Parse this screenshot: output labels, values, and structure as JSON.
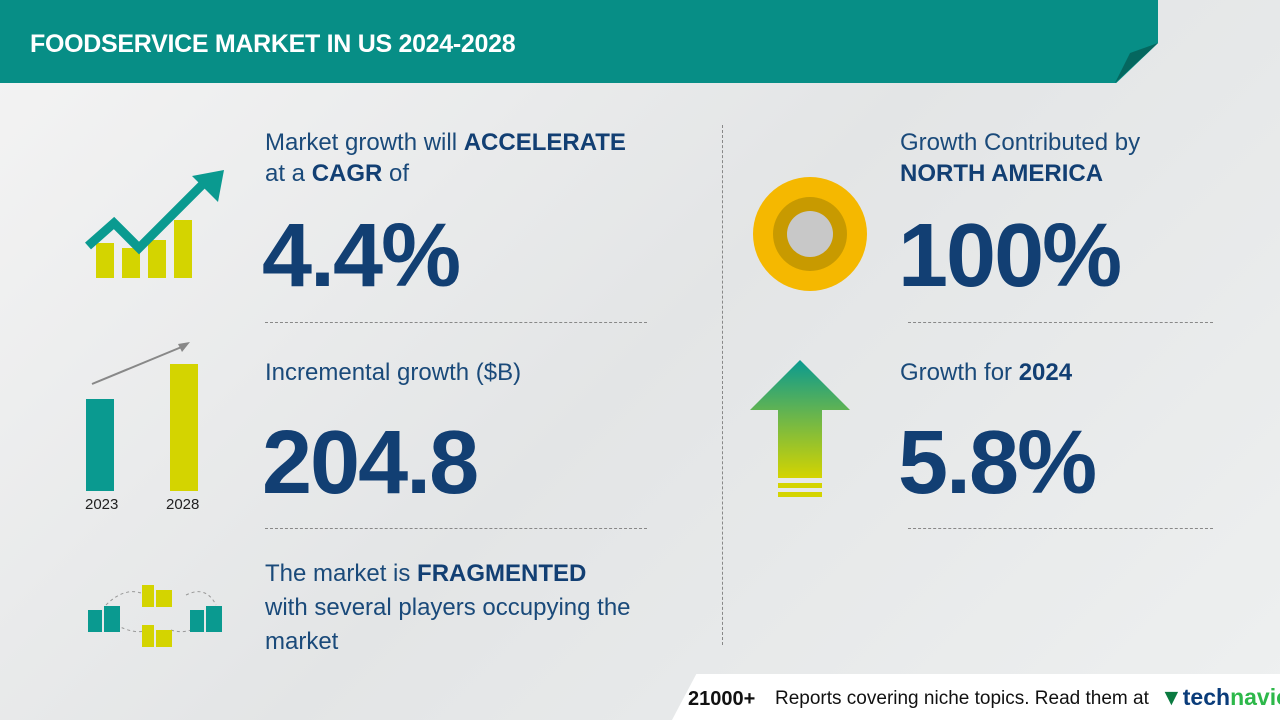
{
  "header": {
    "title": "FOODSERVICE MARKET IN US 2024-2028"
  },
  "cagr": {
    "line1_prefix": "Market growth will ",
    "line1_bold": "ACCELERATE",
    "line2_prefix": "at a ",
    "line2_bold": "CAGR",
    "line2_suffix": " of",
    "value": "4.4%"
  },
  "incremental": {
    "label": "Incremental growth ($B)",
    "value": "204.8",
    "year_start": "2023",
    "year_end": "2028"
  },
  "market": {
    "prefix": "The market is ",
    "bold": "FRAGMENTED",
    "line2": "with several players occupying the",
    "line3": "market"
  },
  "region": {
    "label": "Growth Contributed by",
    "region": "NORTH AMERICA",
    "value": "100%"
  },
  "yoy": {
    "label": "Growth for ",
    "year": "2024",
    "value": "5.8%"
  },
  "footer": {
    "count": "21000+",
    "text": "Reports covering niche topics. Read them at",
    "brand_tech": "tech",
    "brand_navio": "navio"
  },
  "colors": {
    "teal": "#078e86",
    "navy": "#123f73",
    "yellow": "#d4d400",
    "gold": "#f5b800"
  }
}
